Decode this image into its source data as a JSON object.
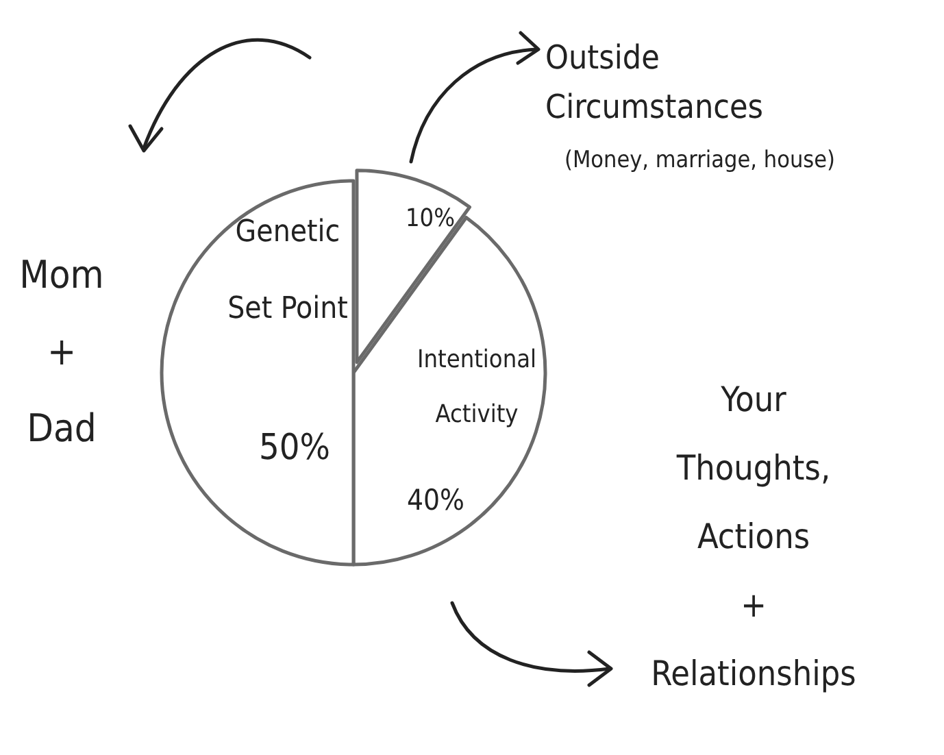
{
  "chart_data": {
    "type": "pie",
    "categories": [
      "Outside Circumstances",
      "Intentional Activity",
      "Genetic Set Point"
    ],
    "values": [
      10,
      40,
      50
    ],
    "value_labels": [
      "10%",
      "40%",
      "50%"
    ],
    "colors": [
      "#ffffff",
      "#ffffff",
      "#ffffff"
    ],
    "annotations": [
      "(Money, marriage, house)",
      "Mom\n+\nDad",
      "Your\nThoughts,\nActions\n+\nRelationships"
    ]
  }
}
